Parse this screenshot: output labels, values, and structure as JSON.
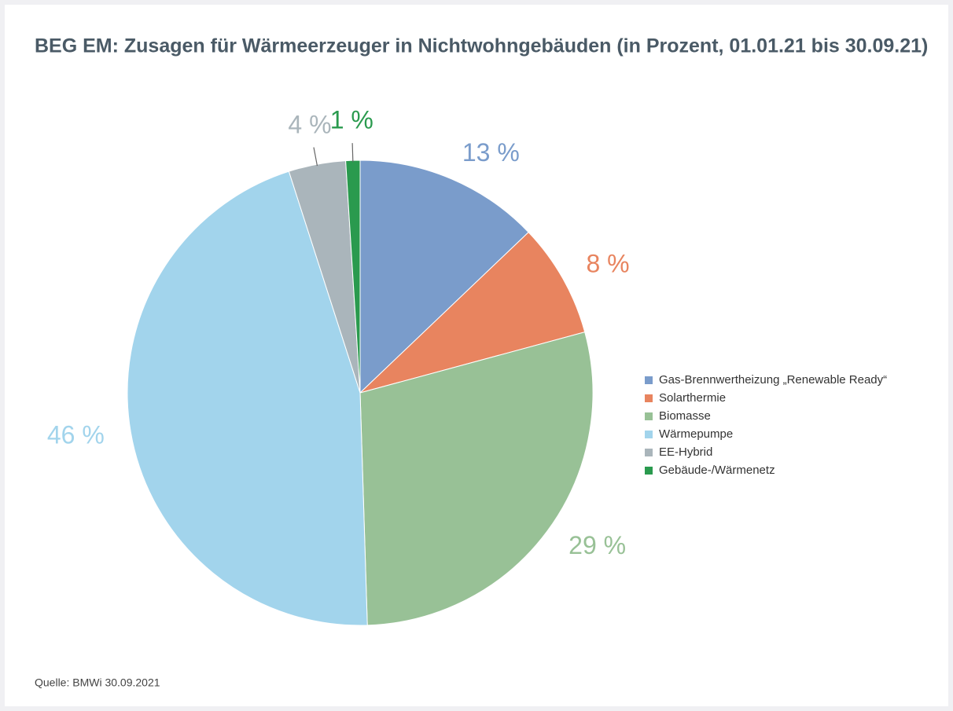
{
  "chart_data": {
    "type": "pie",
    "title": "BEG EM: Zusagen für Wärmeerzeuger in Nichtwohngebäuden (in Prozent, 01.01.21 bis 30.09.21)",
    "categories": [
      "Gas-Brennwertheizung „Renewable Ready“",
      "Solarthermie",
      "Biomasse",
      "Wärmepumpe",
      "EE-Hybrid",
      "Gebäude-/Wärmenetz"
    ],
    "values": [
      13,
      8,
      29,
      46,
      4,
      1
    ],
    "value_labels": [
      "13 %",
      "8 %",
      "29 %",
      "46 %",
      "4 %",
      "1 %"
    ],
    "colors": [
      "#7a9ccb",
      "#e8845f",
      "#98c196",
      "#a2d4ec",
      "#aab5bb",
      "#2a9a4e"
    ],
    "legend": "right",
    "source": "Quelle: BMWi 30.09.2021"
  }
}
